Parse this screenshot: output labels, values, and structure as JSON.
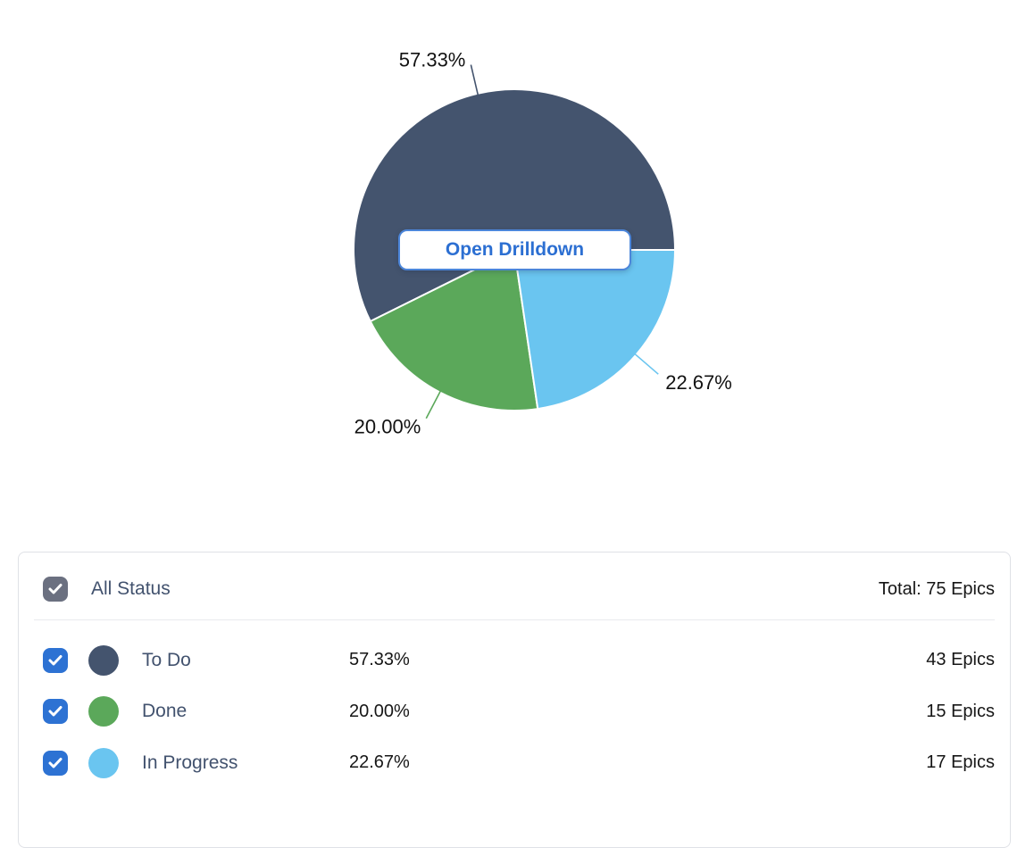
{
  "chart_data": {
    "type": "pie",
    "title": "",
    "unit": "Epics",
    "total": 75,
    "start_angle_deg": 0,
    "direction": "counterclockwise",
    "label_position": "outside",
    "slices": [
      {
        "label": "To Do",
        "value": 43,
        "percent": 57.33,
        "percent_label": "57.33%",
        "epics_label": "43 Epics",
        "color": "#44546E"
      },
      {
        "label": "Done",
        "value": 15,
        "percent": 20.0,
        "percent_label": "20.00%",
        "epics_label": "15 Epics",
        "color": "#5BA85A"
      },
      {
        "label": "In Progress",
        "value": 17,
        "percent": 22.67,
        "percent_label": "22.67%",
        "epics_label": "17 Epics",
        "color": "#6AC5F0"
      }
    ]
  },
  "drilldown_button": {
    "label": "Open Drilldown"
  },
  "legend": {
    "all_label": "All Status",
    "total_label": "Total: 75 Epics",
    "all_checked": true,
    "rows_checked": [
      true,
      true,
      true
    ]
  },
  "colors": {
    "accent-blue": "#2D72D3",
    "checkbox-gray": "#6B7080",
    "label-slate": "#42526E",
    "text-dark": "#161616",
    "card-border": "#DFE1E6",
    "divider": "#E9EAEE",
    "button-border": "#4C86DA",
    "button-text": "#2C6FD2",
    "pie-label-text": "#121212",
    "slice-stroke": "#FFFFFF"
  }
}
